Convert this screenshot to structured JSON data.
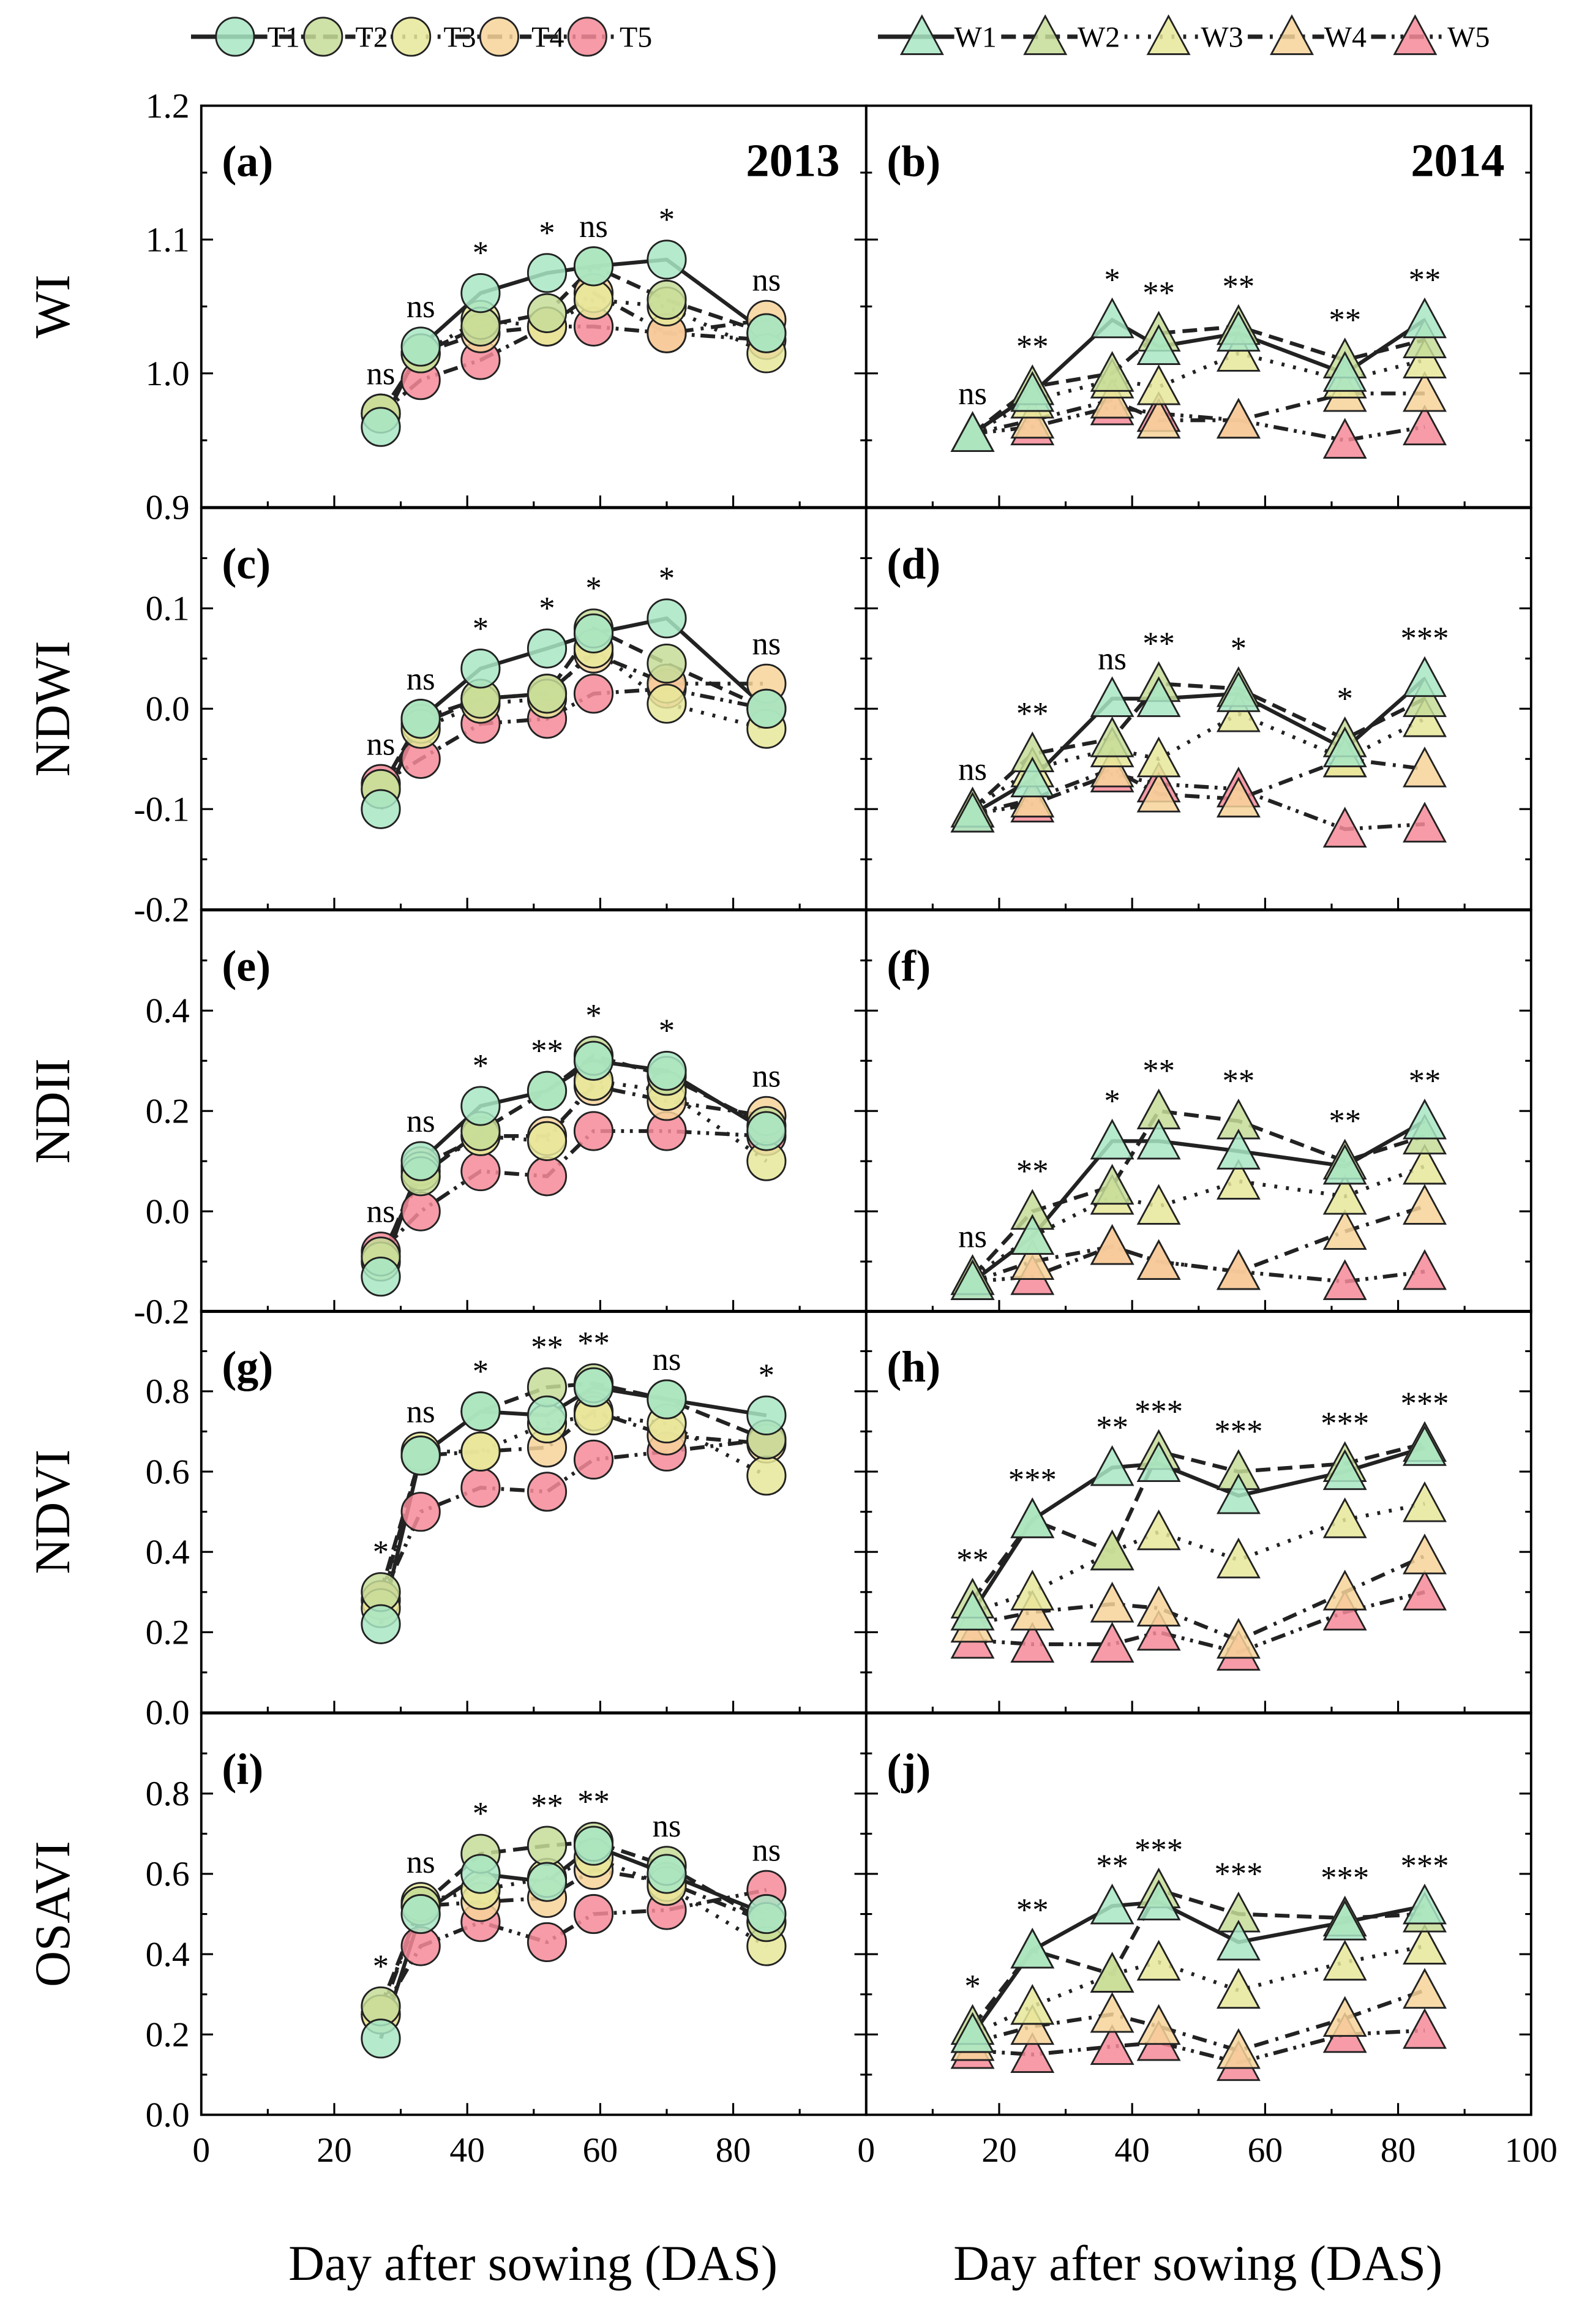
{
  "chart_data": {
    "type": "line",
    "xlabel": "Day after sowing (DAS)",
    "xlim": [
      0,
      100
    ],
    "legend": {
      "placement": "top",
      "entries": [
        {
          "name": "T1",
          "marker": "circle",
          "color": "#a8e6c4",
          "dash": "solid"
        },
        {
          "name": "T2",
          "marker": "circle",
          "color": "#c5dc98",
          "dash": "long-dash"
        },
        {
          "name": "T3",
          "marker": "circle",
          "color": "#e8e89a",
          "dash": "dot"
        },
        {
          "name": "T4",
          "marker": "circle",
          "color": "#f7d49a",
          "dash": "dash-dot"
        },
        {
          "name": "T5",
          "marker": "circle",
          "color": "#f48a98",
          "dash": "dash-dot-dot"
        },
        {
          "name": "W1",
          "marker": "triangle",
          "color": "#a8e6c4",
          "dash": "solid"
        },
        {
          "name": "W2",
          "marker": "triangle",
          "color": "#c5dc98",
          "dash": "long-dash"
        },
        {
          "name": "W3",
          "marker": "triangle",
          "color": "#e8e89a",
          "dash": "dot"
        },
        {
          "name": "W4",
          "marker": "triangle",
          "color": "#f7d49a",
          "dash": "dash-dot"
        },
        {
          "name": "W5",
          "marker": "triangle",
          "color": "#f48a98",
          "dash": "dash-dot-dot"
        }
      ]
    },
    "xticks_left": [
      "0",
      "20",
      "40",
      "60",
      "80"
    ],
    "xticks_right": [
      "0",
      "20",
      "40",
      "60",
      "80",
      "100"
    ],
    "x_2013": [
      27,
      33,
      42,
      52,
      59,
      70,
      85
    ],
    "x_2014": [
      16,
      25,
      37,
      44,
      56,
      72,
      84
    ],
    "panels": [
      {
        "label": "(a)",
        "year": "2013",
        "ylabel": "WI",
        "ylim": [
          0.9,
          1.2
        ],
        "yticks": [
          "0.9",
          "1.0",
          "1.1",
          "1.2"
        ],
        "marker": "circle",
        "series": [
          {
            "name": "T1",
            "values": [
              0.96,
              1.02,
              1.06,
              1.075,
              1.08,
              1.085,
              1.03
            ]
          },
          {
            "name": "T2",
            "values": [
              0.97,
              1.015,
              1.035,
              1.045,
              1.08,
              1.055,
              1.03
            ]
          },
          {
            "name": "T3",
            "values": [
              0.97,
              1.015,
              1.04,
              1.035,
              1.055,
              1.05,
              1.015
            ]
          },
          {
            "name": "T4",
            "values": [
              0.97,
              1.015,
              1.03,
              1.035,
              1.06,
              1.03,
              1.04
            ]
          },
          {
            "name": "T5",
            "values": [
              0.97,
              0.995,
              1.01,
              1.035,
              1.035,
              1.03,
              1.025
            ]
          }
        ],
        "significance": [
          "ns",
          "ns",
          "*",
          "*",
          "ns",
          "*",
          "ns"
        ]
      },
      {
        "label": "(b)",
        "year": "2014",
        "ylabel": "",
        "ylim": [
          0.9,
          1.2
        ],
        "yticks": [],
        "marker": "triangle",
        "series": [
          {
            "name": "W1",
            "values": [
              0.955,
              0.985,
              1.04,
              1.02,
              1.03,
              1.0,
              1.04
            ]
          },
          {
            "name": "W2",
            "values": [
              0.955,
              0.99,
              1.0,
              1.03,
              1.035,
              1.01,
              1.025
            ]
          },
          {
            "name": "W3",
            "values": [
              0.955,
              0.98,
              0.995,
              0.99,
              1.015,
              0.995,
              1.01
            ]
          },
          {
            "name": "W4",
            "values": [
              0.955,
              0.965,
              0.98,
              0.965,
              0.965,
              0.985,
              0.985
            ]
          },
          {
            "name": "W5",
            "values": [
              0.955,
              0.96,
              0.975,
              0.97,
              0.965,
              0.95,
              0.96
            ]
          }
        ],
        "significance": [
          "ns",
          "**",
          "*",
          "**",
          "**",
          "**",
          "**"
        ]
      },
      {
        "label": "(c)",
        "ylabel": "NDWI",
        "ylim": [
          -0.2,
          0.2
        ],
        "yticks": [
          "-0.2",
          "-0.1",
          "0.0",
          "0.1"
        ],
        "marker": "circle",
        "series": [
          {
            "name": "T1",
            "values": [
              -0.1,
              -0.01,
              0.04,
              0.06,
              0.075,
              0.09,
              0.0
            ]
          },
          {
            "name": "T2",
            "values": [
              -0.08,
              -0.01,
              0.01,
              0.015,
              0.08,
              0.045,
              0.0
            ]
          },
          {
            "name": "T3",
            "values": [
              -0.08,
              -0.02,
              0.005,
              0.01,
              0.06,
              0.005,
              -0.02
            ]
          },
          {
            "name": "T4",
            "values": [
              -0.08,
              -0.015,
              0.01,
              0.015,
              0.055,
              0.025,
              0.025
            ]
          },
          {
            "name": "T5",
            "values": [
              -0.075,
              -0.05,
              -0.015,
              -0.01,
              0.015,
              0.02,
              0.0
            ]
          }
        ],
        "significance": [
          "ns",
          "ns",
          "*",
          "*",
          "*",
          "*",
          "ns"
        ]
      },
      {
        "label": "(d)",
        "ylabel": "",
        "ylim": [
          -0.2,
          0.2
        ],
        "yticks": [],
        "marker": "triangle",
        "series": [
          {
            "name": "W1",
            "values": [
              -0.105,
              -0.07,
              0.01,
              0.01,
              0.015,
              -0.04,
              0.03
            ]
          },
          {
            "name": "W2",
            "values": [
              -0.1,
              -0.045,
              -0.03,
              0.025,
              0.02,
              -0.03,
              0.01
            ]
          },
          {
            "name": "W3",
            "values": [
              -0.1,
              -0.06,
              -0.04,
              -0.05,
              -0.005,
              -0.05,
              -0.01
            ]
          },
          {
            "name": "W4",
            "values": [
              -0.105,
              -0.09,
              -0.06,
              -0.085,
              -0.09,
              -0.05,
              -0.06
            ]
          },
          {
            "name": "W5",
            "values": [
              -0.105,
              -0.095,
              -0.065,
              -0.075,
              -0.08,
              -0.12,
              -0.115
            ]
          }
        ],
        "significance": [
          "ns",
          "**",
          "ns",
          "**",
          "*",
          "*",
          "***"
        ]
      },
      {
        "label": "(e)",
        "ylabel": "NDII",
        "ylim": [
          -0.2,
          0.6
        ],
        "yticks": [
          "-0.2",
          "0.0",
          "0.2",
          "0.4"
        ],
        "marker": "circle",
        "series": [
          {
            "name": "T1",
            "values": [
              -0.13,
              0.1,
              0.21,
              0.24,
              0.3,
              0.28,
              0.16
            ]
          },
          {
            "name": "T2",
            "values": [
              -0.09,
              0.07,
              0.16,
              0.24,
              0.31,
              0.27,
              0.17
            ]
          },
          {
            "name": "T3",
            "values": [
              -0.1,
              0.08,
              0.15,
              0.14,
              0.26,
              0.24,
              0.1
            ]
          },
          {
            "name": "T4",
            "values": [
              -0.1,
              0.09,
              0.15,
              0.15,
              0.25,
              0.22,
              0.19
            ]
          },
          {
            "name": "T5",
            "values": [
              -0.08,
              0.0,
              0.08,
              0.07,
              0.16,
              0.16,
              0.15
            ]
          }
        ],
        "significance": [
          "ns",
          "ns",
          "*",
          "**",
          "*",
          "*",
          "ns"
        ]
      },
      {
        "label": "(f)",
        "ylabel": "",
        "ylim": [
          -0.2,
          0.6
        ],
        "yticks": [],
        "marker": "triangle",
        "series": [
          {
            "name": "W1",
            "values": [
              -0.14,
              -0.05,
              0.14,
              0.14,
              0.12,
              0.09,
              0.18
            ]
          },
          {
            "name": "W2",
            "values": [
              -0.13,
              0.0,
              0.05,
              0.2,
              0.18,
              0.1,
              0.15
            ]
          },
          {
            "name": "W3",
            "values": [
              -0.13,
              -0.05,
              0.03,
              0.01,
              0.06,
              0.03,
              0.09
            ]
          },
          {
            "name": "W4",
            "values": [
              -0.14,
              -0.1,
              -0.07,
              -0.1,
              -0.12,
              -0.04,
              0.01
            ]
          },
          {
            "name": "W5",
            "values": [
              -0.14,
              -0.13,
              -0.07,
              -0.1,
              -0.12,
              -0.14,
              -0.12
            ]
          }
        ],
        "significance": [
          "ns",
          "**",
          "*",
          "**",
          "**",
          "**",
          "**"
        ]
      },
      {
        "label": "(g)",
        "ylabel": "NDVI",
        "ylim": [
          0.0,
          1.0
        ],
        "yticks": [
          "0.0",
          "0.2",
          "0.4",
          "0.6",
          "0.8"
        ],
        "marker": "circle",
        "series": [
          {
            "name": "T1",
            "values": [
              0.22,
              0.64,
              0.75,
              0.74,
              0.81,
              0.78,
              0.74
            ]
          },
          {
            "name": "T2",
            "values": [
              0.3,
              0.64,
              0.75,
              0.81,
              0.82,
              0.78,
              0.68
            ]
          },
          {
            "name": "T3",
            "values": [
              0.26,
              0.65,
              0.65,
              0.72,
              0.74,
              0.72,
              0.59
            ]
          },
          {
            "name": "T4",
            "values": [
              0.28,
              0.64,
              0.65,
              0.66,
              0.75,
              0.69,
              0.67
            ]
          },
          {
            "name": "T5",
            "values": [
              0.28,
              0.5,
              0.56,
              0.55,
              0.63,
              0.65,
              0.68
            ]
          }
        ],
        "significance": [
          "*",
          "ns",
          "*",
          "**",
          "**",
          "ns",
          "*"
        ]
      },
      {
        "label": "(h)",
        "ylabel": "",
        "ylim": [
          0.0,
          1.0
        ],
        "yticks": [],
        "marker": "triangle",
        "series": [
          {
            "name": "W1",
            "values": [
              0.25,
              0.48,
              0.61,
              0.62,
              0.54,
              0.6,
              0.66
            ]
          },
          {
            "name": "W2",
            "values": [
              0.28,
              0.48,
              0.4,
              0.65,
              0.6,
              0.62,
              0.67
            ]
          },
          {
            "name": "W3",
            "values": [
              0.25,
              0.3,
              0.4,
              0.45,
              0.38,
              0.48,
              0.52
            ]
          },
          {
            "name": "W4",
            "values": [
              0.22,
              0.25,
              0.27,
              0.26,
              0.18,
              0.3,
              0.39
            ]
          },
          {
            "name": "W5",
            "values": [
              0.18,
              0.17,
              0.17,
              0.2,
              0.15,
              0.25,
              0.3
            ]
          }
        ],
        "significance": [
          "**",
          "***",
          "**",
          "***",
          "***",
          "***",
          "***"
        ]
      },
      {
        "label": "(i)",
        "ylabel": "OSAVI",
        "ylim": [
          0.0,
          1.0
        ],
        "yticks": [
          "0.0",
          "0.2",
          "0.4",
          "0.6",
          "0.8"
        ],
        "marker": "circle",
        "series": [
          {
            "name": "T1",
            "values": [
              0.19,
              0.5,
              0.6,
              0.58,
              0.67,
              0.6,
              0.5
            ]
          },
          {
            "name": "T2",
            "values": [
              0.27,
              0.52,
              0.65,
              0.67,
              0.68,
              0.62,
              0.48
            ]
          },
          {
            "name": "T3",
            "values": [
              0.25,
              0.53,
              0.56,
              0.59,
              0.64,
              0.57,
              0.42
            ]
          },
          {
            "name": "T4",
            "values": [
              0.25,
              0.52,
              0.53,
              0.54,
              0.61,
              0.58,
              0.48
            ]
          },
          {
            "name": "T5",
            "values": [
              0.25,
              0.42,
              0.48,
              0.43,
              0.5,
              0.51,
              0.56
            ]
          }
        ],
        "significance": [
          "*",
          "ns",
          "*",
          "**",
          "**",
          "ns",
          "ns"
        ]
      },
      {
        "label": "(j)",
        "ylabel": "",
        "ylim": [
          0.0,
          1.0
        ],
        "yticks": [],
        "marker": "triangle",
        "series": [
          {
            "name": "W1",
            "values": [
              0.2,
              0.41,
              0.52,
              0.53,
              0.43,
              0.48,
              0.52
            ]
          },
          {
            "name": "W2",
            "values": [
              0.22,
              0.41,
              0.35,
              0.56,
              0.5,
              0.49,
              0.5
            ]
          },
          {
            "name": "W3",
            "values": [
              0.2,
              0.27,
              0.35,
              0.38,
              0.31,
              0.38,
              0.42
            ]
          },
          {
            "name": "W4",
            "values": [
              0.18,
              0.22,
              0.25,
              0.22,
              0.16,
              0.24,
              0.31
            ]
          },
          {
            "name": "W5",
            "values": [
              0.16,
              0.15,
              0.17,
              0.18,
              0.13,
              0.2,
              0.21
            ]
          }
        ],
        "significance": [
          "*",
          "**",
          "**",
          "***",
          "***",
          "***",
          "***"
        ]
      }
    ]
  }
}
